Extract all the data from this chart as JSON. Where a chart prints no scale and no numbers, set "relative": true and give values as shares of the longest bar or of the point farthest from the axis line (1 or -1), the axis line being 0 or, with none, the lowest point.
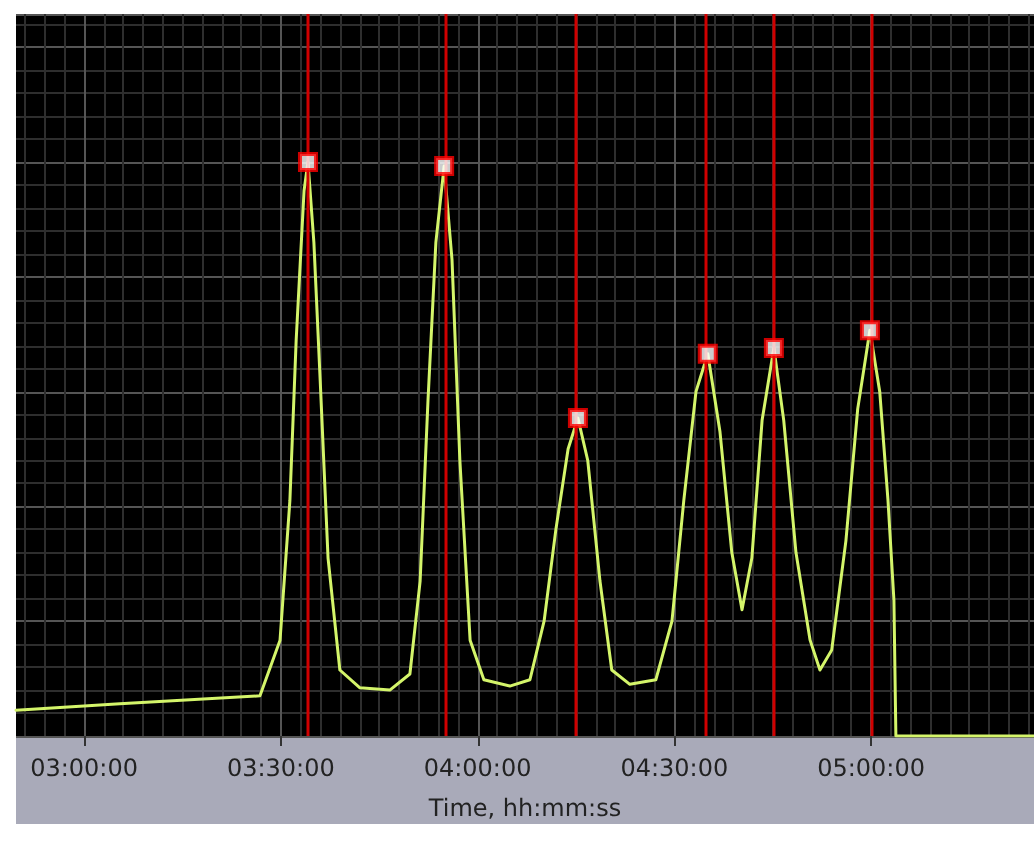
{
  "chart_data": {
    "type": "line",
    "xlabel": "Time, hh:mm:ss",
    "relative": true,
    "grid": true,
    "tick_labels": "x",
    "xlim": [
      2.827,
      5.414
    ],
    "xticks": [
      {
        "value": 3,
        "label": "03:00:00"
      },
      {
        "value": 3.5,
        "label": "03:30:00"
      },
      {
        "value": 4,
        "label": "04:00:00"
      },
      {
        "value": 4.5,
        "label": "04:30:00"
      },
      {
        "value": 5,
        "label": "05:00:00"
      }
    ],
    "series": [
      {
        "type": "line",
        "color": "#d4f56a",
        "marker": "none",
        "line_style": "solid",
        "x": [
          2.827,
          3.091,
          3.447,
          3.498,
          3.523,
          3.539,
          3.559,
          3.569,
          3.584,
          3.6,
          3.62,
          3.65,
          3.701,
          3.777,
          3.828,
          3.854,
          3.874,
          3.894,
          3.915,
          3.935,
          3.955,
          3.981,
          4.016,
          4.082,
          4.133,
          4.169,
          4.199,
          4.23,
          4.255,
          4.28,
          4.311,
          4.341,
          4.387,
          4.453,
          4.494,
          4.524,
          4.555,
          4.585,
          4.616,
          4.646,
          4.672,
          4.697,
          4.723,
          4.753,
          4.778,
          4.809,
          4.845,
          4.87,
          4.9,
          4.936,
          4.966,
          4.997,
          5.022,
          5.043,
          5.058,
          5.063,
          5.414
        ],
        "values": [
          0.045,
          0.056,
          0.07,
          0.167,
          0.41,
          0.69,
          0.95,
          1,
          0.86,
          0.62,
          0.31,
          0.115,
          0.084,
          0.08,
          0.108,
          0.27,
          0.585,
          0.86,
          0.993,
          0.83,
          0.48,
          0.167,
          0.098,
          0.087,
          0.098,
          0.2,
          0.36,
          0.5,
          0.554,
          0.48,
          0.27,
          0.115,
          0.09,
          0.098,
          0.2,
          0.41,
          0.6,
          0.666,
          0.53,
          0.32,
          0.22,
          0.31,
          0.55,
          0.676,
          0.55,
          0.32,
          0.167,
          0.115,
          0.15,
          0.34,
          0.57,
          0.707,
          0.6,
          0.41,
          0.237,
          0,
          0
        ]
      },
      {
        "type": "scatter",
        "color": "#ff0000",
        "marker": "square",
        "x": [
          3.569,
          3.915,
          4.255,
          4.585,
          4.753,
          4.997
        ],
        "values": [
          1,
          0.993,
          0.554,
          0.666,
          0.676,
          0.707
        ]
      }
    ],
    "ref_lines": [
      {
        "axis": "x",
        "value": 3.569,
        "color": "#d00000"
      },
      {
        "axis": "x",
        "value": 3.915,
        "color": "#d00000"
      },
      {
        "axis": "x",
        "value": 4.255,
        "color": "#d00000"
      },
      {
        "axis": "x",
        "value": 4.585,
        "color": "#d00000"
      },
      {
        "axis": "x",
        "value": 4.753,
        "color": "#d00000"
      },
      {
        "axis": "x",
        "value": 4.997,
        "color": "#d00000"
      }
    ]
  }
}
